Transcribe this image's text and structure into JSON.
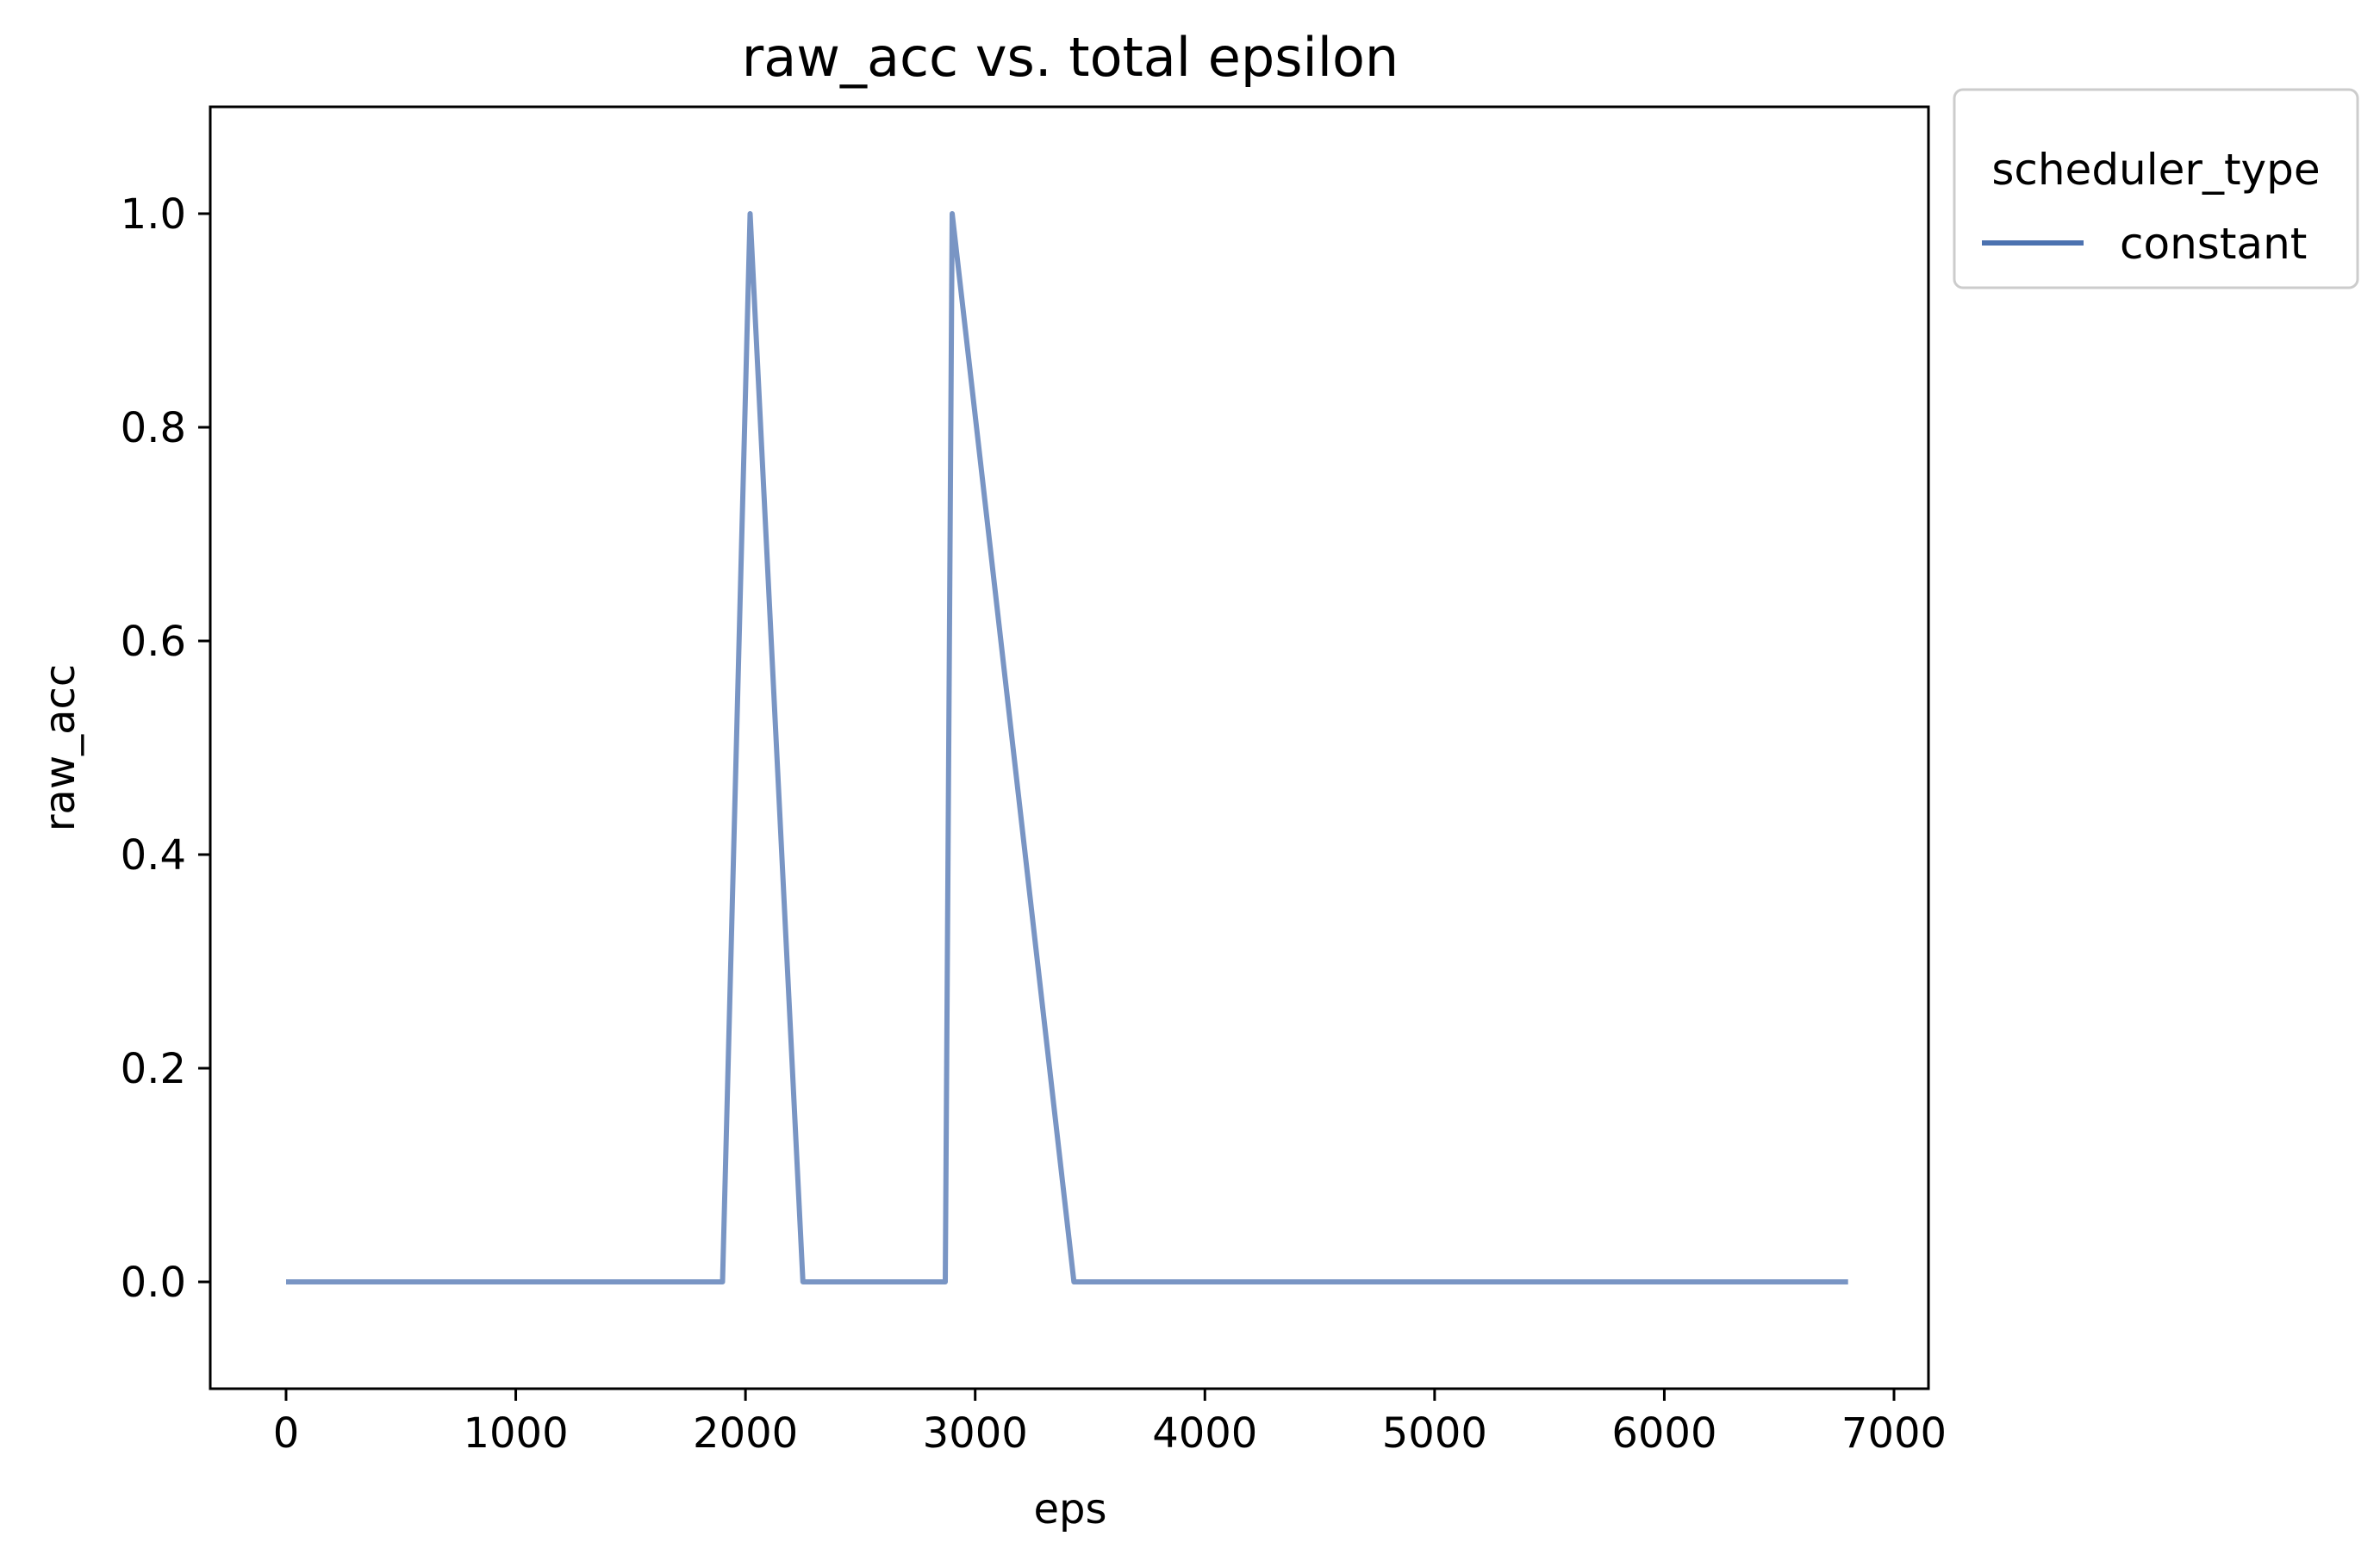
{
  "chart_data": {
    "type": "line",
    "title": "raw_acc vs. total epsilon",
    "xlabel": "eps",
    "ylabel": "raw_acc",
    "xlim": [
      -330,
      7150
    ],
    "ylim": [
      -0.1,
      1.1
    ],
    "xticks": [
      0,
      1000,
      2000,
      3000,
      4000,
      5000,
      6000,
      7000
    ],
    "xtick_labels": [
      "0",
      "1000",
      "2000",
      "3000",
      "4000",
      "5000",
      "6000",
      "7000"
    ],
    "yticks": [
      0.0,
      0.2,
      0.4,
      0.6,
      0.8,
      1.0
    ],
    "ytick_labels": [
      "0.0",
      "0.2",
      "0.4",
      "0.6",
      "0.8",
      "1.0"
    ],
    "grid": false,
    "legend": {
      "title": "scheduler_type",
      "placement": "outside upper right",
      "entries": [
        "constant"
      ]
    },
    "series": [
      {
        "name": "constant",
        "color": "#4c72b0",
        "x": [
          0,
          1900,
          2020,
          2250,
          2870,
          2900,
          3430,
          6800
        ],
        "y": [
          0.0,
          0.0,
          1.0,
          0.0,
          0.0,
          1.0,
          0.0,
          0.0
        ]
      }
    ]
  }
}
